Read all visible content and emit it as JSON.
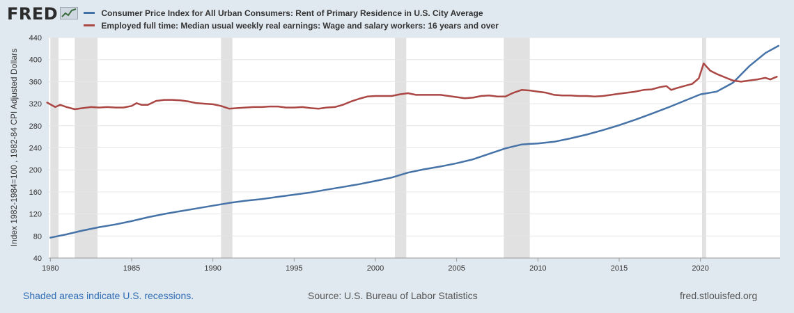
{
  "header": {
    "logo_text": "FRED",
    "logo_icon": "line-chart-icon"
  },
  "legend": [
    {
      "label": "Consumer Price Index for All Urban Consumers: Rent of Primary Residence in U.S. City Average",
      "color": "#4572a7"
    },
    {
      "label": "Employed full time: Median usual weekly real earnings: Wage and salary workers: 16 years and over",
      "color": "#aa4643"
    }
  ],
  "footer": {
    "recessions_note": "Shaded areas indicate U.S. recessions.",
    "source": "Source: U.S. Bureau of Labor Statistics",
    "site": "fred.stlouisfed.org"
  },
  "chart_data": {
    "type": "line",
    "title": "",
    "xlabel": "",
    "ylabel": "Index 1982-1984=100 , 1982-84 CPI Adjusted Dollars",
    "xlim": [
      1979.9,
      2024.9
    ],
    "ylim": [
      40,
      440
    ],
    "x_ticks": [
      1980,
      1985,
      1990,
      1995,
      2000,
      2005,
      2010,
      2015,
      2020
    ],
    "y_ticks": [
      40,
      80,
      120,
      160,
      200,
      240,
      280,
      320,
      360,
      400,
      440
    ],
    "grid": true,
    "recessions": [
      [
        1980.0,
        1980.5
      ],
      [
        1981.5,
        1982.9
      ],
      [
        1990.5,
        1991.2
      ],
      [
        2001.2,
        2001.9
      ],
      [
        2007.9,
        2009.5
      ],
      [
        2020.1,
        2020.35
      ]
    ],
    "series": [
      {
        "name": "Consumer Price Index for All Urban Consumers: Rent of Primary Residence in U.S. City Average",
        "color": "#4572a7",
        "points": [
          [
            1980.0,
            77
          ],
          [
            1981.0,
            83
          ],
          [
            1982.0,
            90
          ],
          [
            1983.0,
            96
          ],
          [
            1984.0,
            101
          ],
          [
            1985.0,
            107
          ],
          [
            1986.0,
            114
          ],
          [
            1987.0,
            120
          ],
          [
            1988.0,
            125
          ],
          [
            1989.0,
            130
          ],
          [
            1990.0,
            135
          ],
          [
            1991.0,
            140
          ],
          [
            1992.0,
            144
          ],
          [
            1993.0,
            147
          ],
          [
            1994.0,
            151
          ],
          [
            1995.0,
            155
          ],
          [
            1996.0,
            159
          ],
          [
            1997.0,
            164
          ],
          [
            1998.0,
            169
          ],
          [
            1999.0,
            174
          ],
          [
            2000.0,
            180
          ],
          [
            2001.0,
            186
          ],
          [
            2002.0,
            195
          ],
          [
            2003.0,
            201
          ],
          [
            2004.0,
            206
          ],
          [
            2005.0,
            212
          ],
          [
            2006.0,
            219
          ],
          [
            2007.0,
            229
          ],
          [
            2008.0,
            239
          ],
          [
            2009.0,
            246
          ],
          [
            2010.0,
            248
          ],
          [
            2011.0,
            251
          ],
          [
            2012.0,
            257
          ],
          [
            2013.0,
            264
          ],
          [
            2014.0,
            272
          ],
          [
            2015.0,
            281
          ],
          [
            2016.0,
            291
          ],
          [
            2017.0,
            302
          ],
          [
            2018.0,
            313
          ],
          [
            2019.0,
            325
          ],
          [
            2020.0,
            337
          ],
          [
            2021.0,
            342
          ],
          [
            2022.0,
            358
          ],
          [
            2023.0,
            388
          ],
          [
            2024.0,
            412
          ],
          [
            2024.8,
            425
          ]
        ]
      },
      {
        "name": "Employed full time: Median usual weekly real earnings: Wage and salary workers: 16 years and over",
        "color": "#aa4643",
        "points": [
          [
            1979.8,
            322
          ],
          [
            1980.3,
            314
          ],
          [
            1980.6,
            318
          ],
          [
            1981.0,
            314
          ],
          [
            1981.5,
            310
          ],
          [
            1982.0,
            312
          ],
          [
            1982.5,
            314
          ],
          [
            1983.0,
            313
          ],
          [
            1983.5,
            314
          ],
          [
            1984.0,
            313
          ],
          [
            1984.5,
            313
          ],
          [
            1985.0,
            316
          ],
          [
            1985.3,
            321
          ],
          [
            1985.6,
            318
          ],
          [
            1986.0,
            318
          ],
          [
            1986.5,
            325
          ],
          [
            1987.0,
            327
          ],
          [
            1987.5,
            327
          ],
          [
            1988.0,
            326
          ],
          [
            1988.5,
            324
          ],
          [
            1989.0,
            321
          ],
          [
            1989.5,
            320
          ],
          [
            1990.0,
            319
          ],
          [
            1990.5,
            316
          ],
          [
            1991.0,
            311
          ],
          [
            1991.5,
            312
          ],
          [
            1992.0,
            313
          ],
          [
            1992.5,
            314
          ],
          [
            1993.0,
            314
          ],
          [
            1993.5,
            315
          ],
          [
            1994.0,
            315
          ],
          [
            1994.5,
            313
          ],
          [
            1995.0,
            313
          ],
          [
            1995.5,
            314
          ],
          [
            1996.0,
            312
          ],
          [
            1996.5,
            311
          ],
          [
            1997.0,
            313
          ],
          [
            1997.5,
            314
          ],
          [
            1998.0,
            318
          ],
          [
            1998.5,
            324
          ],
          [
            1999.0,
            329
          ],
          [
            1999.5,
            333
          ],
          [
            2000.0,
            334
          ],
          [
            2000.5,
            334
          ],
          [
            2001.0,
            334
          ],
          [
            2001.5,
            337
          ],
          [
            2002.0,
            339
          ],
          [
            2002.5,
            336
          ],
          [
            2003.0,
            336
          ],
          [
            2003.5,
            336
          ],
          [
            2004.0,
            336
          ],
          [
            2004.5,
            334
          ],
          [
            2005.0,
            332
          ],
          [
            2005.5,
            330
          ],
          [
            2006.0,
            331
          ],
          [
            2006.5,
            334
          ],
          [
            2007.0,
            335
          ],
          [
            2007.5,
            333
          ],
          [
            2008.0,
            333
          ],
          [
            2008.5,
            340
          ],
          [
            2009.0,
            345
          ],
          [
            2009.5,
            344
          ],
          [
            2010.0,
            342
          ],
          [
            2010.5,
            340
          ],
          [
            2011.0,
            336
          ],
          [
            2011.5,
            335
          ],
          [
            2012.0,
            335
          ],
          [
            2012.5,
            334
          ],
          [
            2013.0,
            334
          ],
          [
            2013.5,
            333
          ],
          [
            2014.0,
            334
          ],
          [
            2014.5,
            336
          ],
          [
            2015.0,
            338
          ],
          [
            2015.5,
            340
          ],
          [
            2016.0,
            342
          ],
          [
            2016.5,
            345
          ],
          [
            2017.0,
            346
          ],
          [
            2017.5,
            350
          ],
          [
            2017.9,
            352
          ],
          [
            2018.2,
            345
          ],
          [
            2018.5,
            348
          ],
          [
            2019.0,
            352
          ],
          [
            2019.5,
            356
          ],
          [
            2019.9,
            366
          ],
          [
            2020.2,
            393
          ],
          [
            2020.6,
            380
          ],
          [
            2021.0,
            374
          ],
          [
            2021.5,
            368
          ],
          [
            2022.0,
            362
          ],
          [
            2022.5,
            360
          ],
          [
            2023.0,
            362
          ],
          [
            2023.5,
            364
          ],
          [
            2024.0,
            367
          ],
          [
            2024.3,
            364
          ],
          [
            2024.7,
            369
          ]
        ]
      }
    ]
  }
}
